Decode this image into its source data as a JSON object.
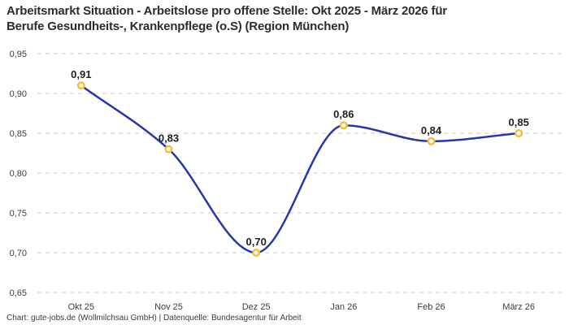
{
  "header": {
    "title_line1": "Arbeitsmarkt Situation - Arbeitslose pro offene Stelle: Okt 2025 - März 2026 für",
    "title_line2": "Berufe Gesundheits-, Krankenpflege (o.S) (Region München)"
  },
  "footer": {
    "attribution": "Chart: gute-jobs.de (Wollmilchsau GmbH) | Datenquelle: Bundesagentur für Arbeit"
  },
  "chart_data": {
    "type": "line",
    "title": "Arbeitsmarkt Situation - Arbeitslose pro offene Stelle: Okt 2025 - März 2026 für Berufe Gesundheits-, Krankenpflege (o.S) (Region München)",
    "categories": [
      "Okt 25",
      "Nov 25",
      "Dez 25",
      "Jan 26",
      "Feb 26",
      "März 26"
    ],
    "values": [
      0.91,
      0.83,
      0.7,
      0.86,
      0.84,
      0.85
    ],
    "value_labels": [
      "0,91",
      "0,83",
      "0,70",
      "0,86",
      "0,84",
      "0,85"
    ],
    "xlabel": "",
    "ylabel": "",
    "ylim": [
      0.65,
      0.95
    ],
    "y_tick_values": [
      0.95,
      0.9,
      0.85,
      0.8,
      0.75,
      0.7,
      0.65
    ],
    "y_tick_labels": [
      "0,95",
      "0,90",
      "0,85",
      "0,80",
      "0,75",
      "0,70",
      "0,65"
    ],
    "legend": "none",
    "grid": "horizontal-dashed",
    "interpolation": "monotone-spline",
    "colors": {
      "line": "#2438A8",
      "marker_stroke": "#F8BC33",
      "marker_fill": "#FFFFFF",
      "grid": "#C9C9C9",
      "title_text": "#2D2D2D",
      "tick_text": "#3D3D3D",
      "data_label_text": "#1F1F1F",
      "footer_text": "#3B3B3B"
    }
  }
}
